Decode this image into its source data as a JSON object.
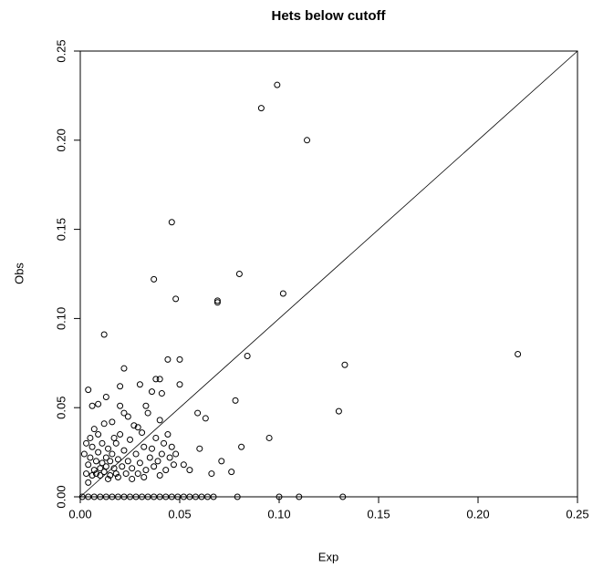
{
  "chart_data": {
    "type": "scatter",
    "title": "Hets below cutoff",
    "x_label": "Exp",
    "y_label": "Obs",
    "xlim": [
      0,
      0.25
    ],
    "ylim": [
      0,
      0.25
    ],
    "xticks": [
      {
        "value": 0,
        "label": "0.00"
      },
      0.05,
      {
        "value": 0.1,
        "label": "0.10"
      },
      0.15,
      {
        "value": 0.2,
        "label": "0.20"
      },
      0.25
    ],
    "yticks": [
      {
        "value": 0,
        "label": "0.00"
      },
      0.05,
      {
        "value": 0.1,
        "label": "0.10"
      },
      0.15,
      {
        "value": 0.2,
        "label": "0.20"
      },
      0.25
    ],
    "diagonal": true,
    "color": "#000000",
    "x": [
      0.099,
      0.091,
      0.114,
      0.046,
      0.037,
      0.08,
      0.048,
      0.069,
      0.069,
      0.102,
      0.012,
      0.22,
      0.084,
      0.044,
      0.05,
      0.133,
      0.022,
      0.038,
      0.04,
      0.03,
      0.05,
      0.02,
      0.041,
      0.004,
      0.078,
      0.013,
      0.13,
      0.006,
      0.009,
      0.059,
      0.063,
      0.095,
      0.081,
      0.06,
      0.071,
      0.076,
      0.066,
      0.055,
      0.052,
      0.003,
      0.004,
      0.005,
      0.006,
      0.007,
      0.008,
      0.008,
      0.009,
      0.01,
      0.01,
      0.011,
      0.011,
      0.012,
      0.013,
      0.013,
      0.014,
      0.015,
      0.015,
      0.016,
      0.017,
      0.018,
      0.018,
      0.019,
      0.02,
      0.021,
      0.022,
      0.022,
      0.023,
      0.024,
      0.025,
      0.026,
      0.027,
      0.028,
      0.029,
      0.03,
      0.031,
      0.032,
      0.033,
      0.034,
      0.035,
      0.036,
      0.037,
      0.038,
      0.039,
      0.04,
      0.041,
      0.042,
      0.043,
      0.044,
      0.045,
      0.046,
      0.047,
      0.048,
      0.002,
      0.003,
      0.005,
      0.007,
      0.009,
      0.012,
      0.016,
      0.02,
      0.024,
      0.029,
      0.033,
      0.036,
      0.014,
      0.019,
      0.006,
      0.017,
      0.026,
      0.032,
      0.04,
      0.004,
      0.001,
      0.004,
      0.007,
      0.01,
      0.013,
      0.016,
      0.019,
      0.022,
      0.025,
      0.028,
      0.031,
      0.034,
      0.037,
      0.04,
      0.043,
      0.046,
      0.049,
      0.052,
      0.055,
      0.058,
      0.061,
      0.064,
      0.067,
      0.079,
      0.1,
      0.11,
      0.132
    ],
    "values": [
      0.231,
      0.218,
      0.2,
      0.154,
      0.122,
      0.125,
      0.111,
      0.11,
      0.109,
      0.114,
      0.091,
      0.08,
      0.079,
      0.077,
      0.077,
      0.074,
      0.072,
      0.066,
      0.066,
      0.063,
      0.063,
      0.062,
      0.058,
      0.06,
      0.054,
      0.056,
      0.048,
      0.051,
      0.052,
      0.047,
      0.044,
      0.033,
      0.028,
      0.027,
      0.02,
      0.014,
      0.013,
      0.015,
      0.018,
      0.013,
      0.018,
      0.022,
      0.012,
      0.015,
      0.02,
      0.013,
      0.025,
      0.016,
      0.012,
      0.019,
      0.03,
      0.014,
      0.022,
      0.017,
      0.027,
      0.012,
      0.02,
      0.024,
      0.016,
      0.03,
      0.013,
      0.021,
      0.035,
      0.017,
      0.047,
      0.026,
      0.013,
      0.02,
      0.032,
      0.016,
      0.04,
      0.024,
      0.013,
      0.019,
      0.036,
      0.028,
      0.015,
      0.047,
      0.022,
      0.027,
      0.017,
      0.033,
      0.02,
      0.043,
      0.024,
      0.03,
      0.015,
      0.035,
      0.022,
      0.028,
      0.018,
      0.024,
      0.024,
      0.03,
      0.033,
      0.038,
      0.035,
      0.041,
      0.042,
      0.051,
      0.045,
      0.039,
      0.051,
      0.059,
      0.01,
      0.011,
      0.028,
      0.033,
      0.01,
      0.011,
      0.012,
      0.008,
      0,
      0,
      0,
      0,
      0,
      0,
      0,
      0,
      0,
      0,
      0,
      0,
      0,
      0,
      0,
      0,
      0,
      0,
      0,
      0,
      0,
      0,
      0,
      0,
      0,
      0,
      0
    ]
  }
}
